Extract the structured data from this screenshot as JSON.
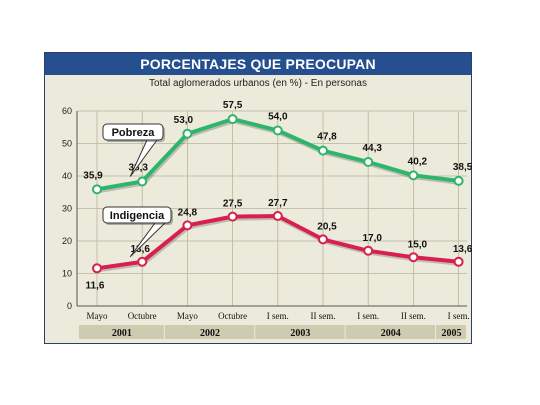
{
  "header": {
    "title": "PORCENTAJES QUE PREOCUPAN",
    "subtitle": "Total aglomerados urbanos (en %) - En personas"
  },
  "colors": {
    "title_bar": "#254f8e",
    "panel": "#eceada",
    "pobreza": "#2fb56b",
    "indigencia": "#d81f4e",
    "year_band": "#cfcbb0"
  },
  "chart_data": {
    "type": "line",
    "title": "PORCENTAJES QUE PREOCUPAN",
    "subtitle": "Total aglomerados urbanos (en %) - En personas",
    "categories": [
      "Mayo",
      "Octubre",
      "Mayo",
      "Octubre",
      "I sem.",
      "II sem.",
      "I sem.",
      "II sem.",
      "I sem."
    ],
    "year_groups": [
      {
        "label": "2001",
        "span": [
          0,
          1
        ]
      },
      {
        "label": "2002",
        "span": [
          2,
          3
        ]
      },
      {
        "label": "2003",
        "span": [
          4,
          5
        ]
      },
      {
        "label": "2004",
        "span": [
          6,
          7
        ]
      },
      {
        "label": "2005",
        "span": [
          8,
          8
        ]
      }
    ],
    "series": [
      {
        "name": "Pobreza",
        "values": [
          35.9,
          38.3,
          53.0,
          57.5,
          54.0,
          47.8,
          44.3,
          40.2,
          38.5
        ],
        "labels": [
          "35,9",
          "38,3",
          "53,0",
          "57,5",
          "54,0",
          "47,8",
          "44,3",
          "40,2",
          "38,5"
        ]
      },
      {
        "name": "Indigencia",
        "values": [
          11.6,
          13.6,
          24.8,
          27.5,
          27.7,
          20.5,
          17.0,
          15.0,
          13.6
        ],
        "labels": [
          "11,6",
          "13,6",
          "24,8",
          "27,5",
          "27,7",
          "20,5",
          "17,0",
          "15,0",
          "13,6"
        ]
      }
    ],
    "yticks": [
      "0",
      "10",
      "20",
      "30",
      "40",
      "50",
      "60"
    ],
    "ylim": [
      0,
      60
    ],
    "grid": true,
    "legend": "none"
  }
}
